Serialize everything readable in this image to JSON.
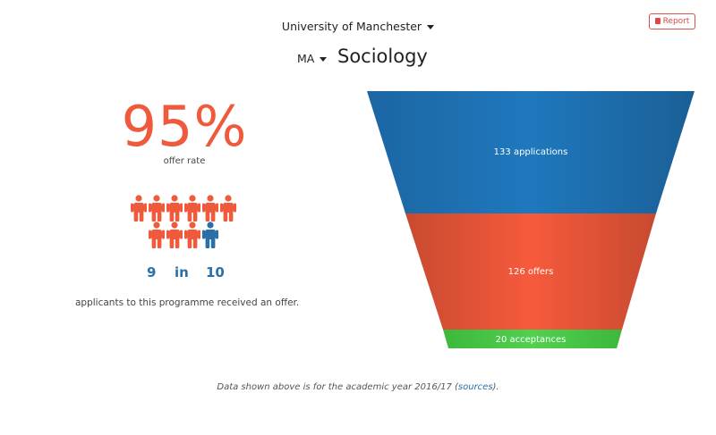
{
  "header": {
    "university": "University of Manchester",
    "degree": "MA",
    "course": "Sociology",
    "report_label": "Report"
  },
  "stats": {
    "offer_rate": "95%",
    "offer_rate_label": "offer rate",
    "ratio_numerator": "9",
    "ratio_word": "in",
    "ratio_denominator": "10",
    "ratio_value": 0.9,
    "description": "applicants to this programme received an offer."
  },
  "funnel": {
    "applications": 133,
    "applications_label": "133 applications",
    "offers": 126,
    "offers_label": "126 offers",
    "acceptances": 20,
    "acceptances_label": "20 acceptances",
    "colors": {
      "applications": "#1f72b2",
      "offers": "#f2573a",
      "acceptances": "#4ccb4a"
    }
  },
  "footer": {
    "note_prefix": "Data shown above is for the academic year 2016/17 (",
    "sources_link": "sources",
    "note_suffix": ")."
  },
  "colors": {
    "accent": "#f05a3c",
    "blue": "#2a6fa8"
  }
}
